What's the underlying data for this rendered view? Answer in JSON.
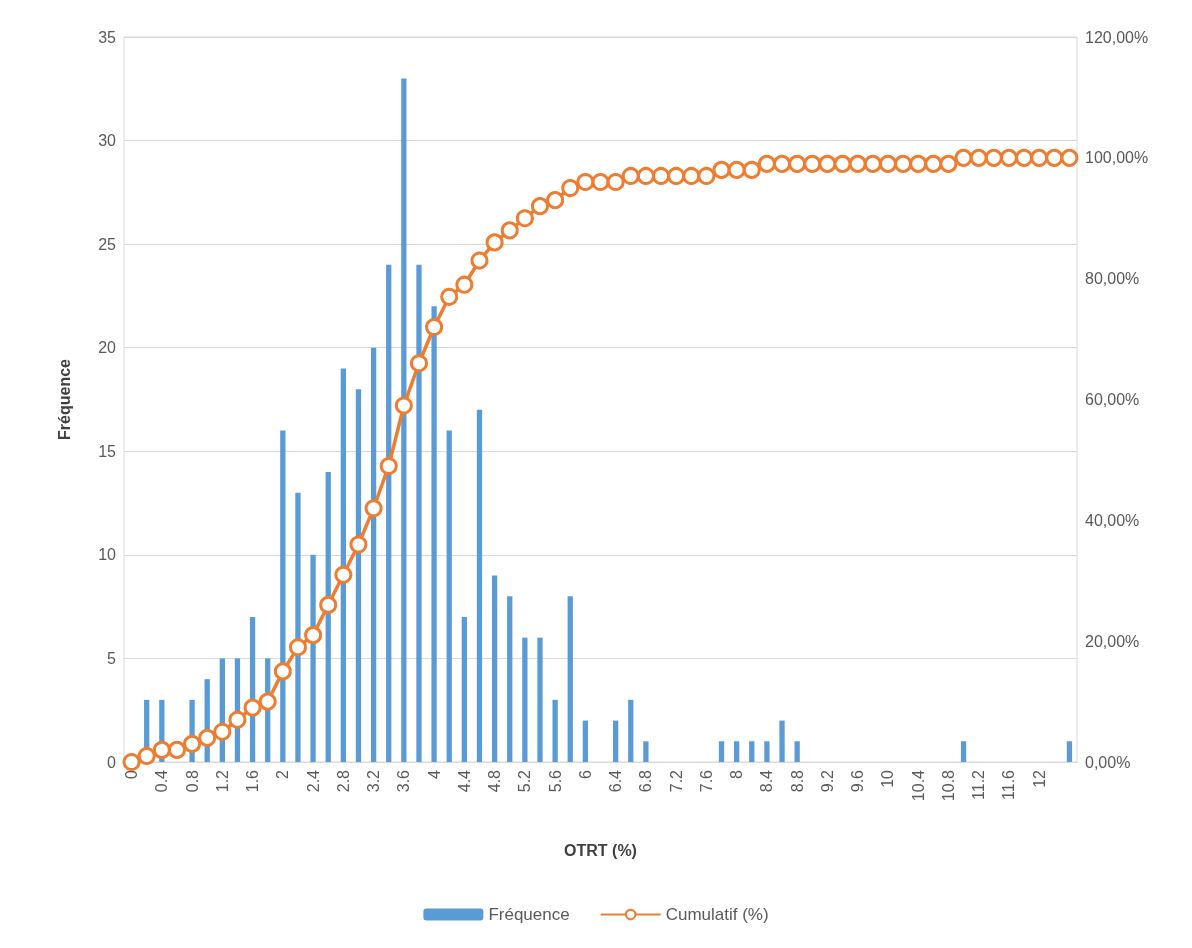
{
  "chart_data": {
    "type": "bar",
    "xlabel": "OTRT (%)",
    "ylabel": "Fréquence",
    "categories": [
      "0",
      null,
      "0.4",
      null,
      "0.8",
      null,
      "1.2",
      null,
      "1.6",
      null,
      "2",
      null,
      "2.4",
      null,
      "2.8",
      null,
      "3.2",
      null,
      "3.6",
      null,
      "4",
      null,
      "4.4",
      null,
      "4.8",
      null,
      "5.2",
      null,
      "5.6",
      null,
      "6",
      null,
      "6.4",
      null,
      "6.8",
      null,
      "7.2",
      null,
      "7.6",
      null,
      "8",
      null,
      "8.4",
      null,
      "8.8",
      null,
      "9.2",
      null,
      "9.6",
      null,
      "10",
      null,
      "10.4",
      null,
      "10.8",
      null,
      "11.2",
      null,
      "11.6",
      null,
      "12",
      null,
      null
    ],
    "series": [
      {
        "name": "Fréquence",
        "color": "#5b9bd5",
        "values": [
          0,
          3,
          3,
          0,
          3,
          4,
          5,
          5,
          7,
          5,
          16,
          13,
          10,
          14,
          19,
          18,
          20,
          24,
          33,
          24,
          22,
          16,
          7,
          17,
          9,
          8,
          6,
          6,
          3,
          8,
          2,
          0,
          2,
          3,
          1,
          0,
          0,
          0,
          0,
          1,
          1,
          1,
          1,
          2,
          1,
          0,
          0,
          0,
          0,
          0,
          0,
          0,
          0,
          0,
          0,
          1,
          0,
          0,
          0,
          0,
          0,
          0,
          1
        ]
      },
      {
        "name": "Cumulatif (%)",
        "type": "line",
        "axis": "y2",
        "color": "#ed7d31",
        "values": [
          0,
          1,
          2,
          2,
          3,
          4,
          5,
          7,
          9,
          10,
          15,
          19,
          21,
          26,
          31,
          36,
          42,
          49,
          59,
          66,
          72,
          77,
          79,
          83,
          86,
          88,
          90,
          92,
          93,
          95,
          96,
          96,
          96,
          97,
          97,
          97,
          97,
          97,
          97,
          98,
          98,
          98,
          99,
          99,
          99,
          99,
          99,
          99,
          99,
          99,
          99,
          99,
          99,
          99,
          99,
          100,
          100,
          100,
          100,
          100,
          100,
          100,
          100
        ]
      }
    ],
    "ylim": [
      0,
      35
    ],
    "yticks": [
      0,
      5,
      10,
      15,
      20,
      25,
      30,
      35
    ],
    "y2lim": [
      0,
      120
    ],
    "y2ticks": [
      {
        "value": 0,
        "label": "0,00%"
      },
      {
        "value": 20,
        "label": "20,00%"
      },
      {
        "value": 40,
        "label": "40,00%"
      },
      {
        "value": 60,
        "label": "60,00%"
      },
      {
        "value": 80,
        "label": "80,00%"
      },
      {
        "value": 100,
        "label": "100,00%"
      },
      {
        "value": 120,
        "label": "120,00%"
      }
    ],
    "grid": "y",
    "legend": "bottom",
    "marker": "circle"
  }
}
